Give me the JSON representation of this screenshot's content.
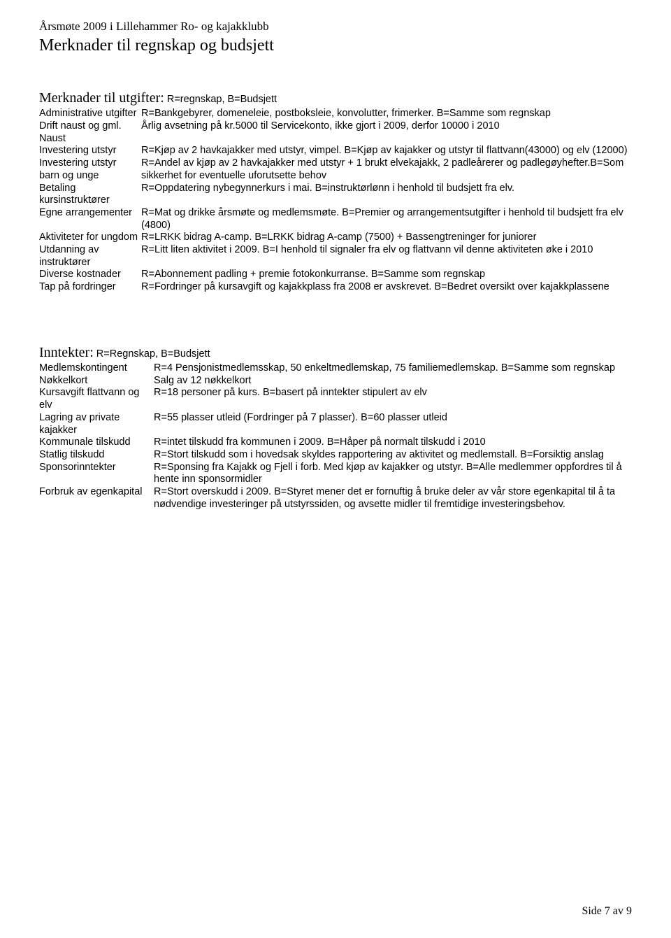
{
  "docHeader": "Årsmøte 2009 i Lillehammer Ro- og kajakklubb",
  "docTitle": "Merknader til regnskap og budsjett",
  "expenses": {
    "titleMain": "Merknader til utgifter:",
    "titleSub": " R=regnskap, B=Budsjett",
    "rows": [
      {
        "label": "Administrative utgifter",
        "text": "R=Bankgebyrer, domeneleie, postboksleie, konvolutter, frimerker. B=Samme som regnskap"
      },
      {
        "label": "Drift naust og gml. Naust",
        "text": "Årlig avsetning på kr.5000 til Servicekonto, ikke gjort i 2009, derfor 10000 i 2010"
      },
      {
        "label": "Investering utstyr",
        "text": "R=Kjøp av 2 havkajakker med utstyr, vimpel. B=Kjøp av kajakker og utstyr til flattvann(43000) og elv (12000)"
      },
      {
        "label": "Investering utstyr barn og unge",
        "text": "R=Andel av kjøp av 2 havkajakker med utstyr + 1 brukt elvekajakk, 2 padleårerer og padlegøyhefter.B=Som sikkerhet for eventuelle uforutsette behov"
      },
      {
        "label": "Betaling kursinstruktører",
        "text": "R=Oppdatering nybegynnerkurs i mai. B=instruktørlønn i henhold til budsjett fra elv."
      },
      {
        "label": "Egne arrangementer",
        "text": "R=Mat og drikke årsmøte og medlemsmøte. B=Premier og arrangementsutgifter i henhold til budsjett fra elv (4800)"
      },
      {
        "label": "Aktiviteter for ungdom",
        "text": "R=LRKK bidrag A-camp. B=LRKK bidrag A-camp (7500) + Bassengtreninger for juniorer"
      },
      {
        "label": "Utdanning av instruktører",
        "text": "R=Litt liten aktivitet i 2009. B=I henhold til signaler fra elv og flattvann vil denne aktiviteten øke i 2010"
      },
      {
        "label": "Diverse kostnader",
        "text": "R=Abonnement padling + premie fotokonkurranse. B=Samme som regnskap"
      },
      {
        "label": "Tap på fordringer",
        "text": "R=Fordringer på kursavgift og  kajakkplass fra 2008 er avskrevet. B=Bedret oversikt over kajakkplassene"
      }
    ]
  },
  "income": {
    "titleMain": "Inntekter:",
    "titleSub": " R=Regnskap, B=Budsjett",
    "rows": [
      {
        "label": "Medlemskontingent",
        "text": "R=4 Pensjonistmedlemsskap, 50 enkeltmedlemskap, 75 familiemedlemskap. B=Samme som regnskap"
      },
      {
        "label": "Nøkkelkort",
        "text": "Salg av 12 nøkkelkort"
      },
      {
        "label": "Kursavgift flattvann og elv",
        "text": "R=18 personer på kurs. B=basert på inntekter stipulert av elv"
      },
      {
        "label": "Lagring av private kajakker",
        "text": "R=55 plasser utleid (Fordringer på 7 plasser). B=60 plasser utleid"
      },
      {
        "label": "Kommunale tilskudd",
        "text": "R=intet tilskudd fra kommunen i 2009. B=Håper på normalt tilskudd i 2010"
      },
      {
        "label": "Statlig tilskudd",
        "text": "R=Stort tilskudd som i hovedsak skyldes rapportering av aktivitet og medlemstall. B=Forsiktig anslag"
      },
      {
        "label": "Sponsorinntekter",
        "text": "R=Sponsing fra Kajakk og Fjell i forb. Med kjøp av kajakker og utstyr. B=Alle medlemmer oppfordres til å hente inn sponsormidler"
      },
      {
        "label": "Forbruk av egenkapital",
        "text": "R=Stort overskudd i 2009. B=Styret mener det er fornuftig å bruke deler av vår store egenkapital til å ta nødvendige investeringer på utstyrssiden, og avsette midler til fremtidige investeringsbehov."
      }
    ]
  },
  "pageNum": "Side 7 av 9"
}
